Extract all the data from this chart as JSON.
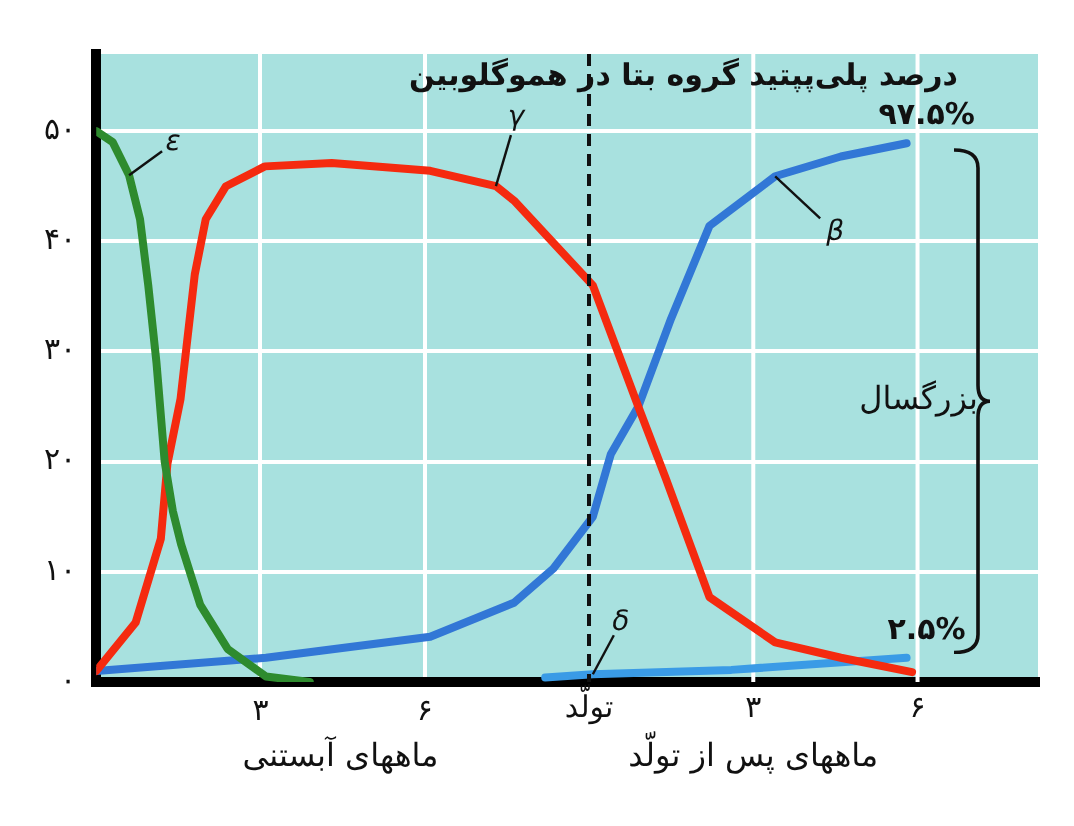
{
  "chart_data": {
    "type": "line",
    "title": "درصد پلی‌پپتید گروه بتا در هموگلوبین",
    "xlabel": "ماههای آبستنی",
    "xlim": [
      0,
      17.2
    ],
    "xticks": [
      {
        "value": 3,
        "label": "۳"
      },
      {
        "value": 6,
        "label": "۶"
      }
    ],
    "x2lim": [
      -9,
      8.2
    ],
    "x2ticks": [
      {
        "value": 0,
        "label": "تولّد"
      },
      {
        "value": 3,
        "label": "۳"
      },
      {
        "value": 6,
        "label": "۶"
      }
    ],
    "ylim": [
      0,
      57
    ],
    "yticks": [
      {
        "value": 0,
        "label": "۰"
      },
      {
        "value": 10,
        "label": "۱۰"
      },
      {
        "value": 20,
        "label": "۲۰"
      },
      {
        "value": 30,
        "label": "۳۰"
      },
      {
        "value": 40,
        "label": "۴۰"
      },
      {
        "value": 50,
        "label": "۵۰"
      }
    ],
    "grid": true,
    "legend": false,
    "marker": "none",
    "line_style": "solid",
    "series": [
      {
        "name": "ε",
        "color": "#2e8b2e",
        "x": [
          0,
          0.3,
          0.6,
          0.8,
          0.95,
          1.1,
          1.25,
          1.4,
          1.55,
          1.9,
          2.4,
          3.1,
          3.9
        ],
        "values": [
          50,
          49,
          46,
          42,
          36,
          29,
          20,
          15.5,
          12.5,
          7,
          3,
          0.5,
          0
        ]
      },
      {
        "name": "γ",
        "color": "#f52a0f",
        "x": [
          0,
          0.72,
          1.18,
          1.3,
          1.54,
          1.8,
          2.0,
          2.37,
          3.08,
          4.3,
          6.1,
          7.3,
          7.63,
          9.07,
          9.9,
          10.4,
          11.2,
          12.4,
          13.6,
          14.9
        ],
        "values": [
          1,
          5.4,
          13,
          19.8,
          25.7,
          37,
          42,
          45,
          46.8,
          47.1,
          46.4,
          45,
          43.7,
          36,
          25,
          18.5,
          7.7,
          3.6,
          2.2,
          0.9
        ]
      },
      {
        "name": "β",
        "color": "#3277d6",
        "x": [
          0,
          3.1,
          6.1,
          7.63,
          8.35,
          9.07,
          9.4,
          9.9,
          10.5,
          11.2,
          12.4,
          13.6,
          14.8
        ],
        "values": [
          1,
          2.2,
          4.1,
          7.2,
          10.3,
          15,
          20.7,
          25,
          33,
          41.4,
          45.9,
          47.7,
          48.9
        ]
      },
      {
        "name": "δ",
        "color": "#3a9be6",
        "x": [
          8.2,
          9.07,
          11.6,
          14.8
        ],
        "values": [
          0.4,
          0.7,
          1.1,
          2.2
        ]
      }
    ],
    "ref_lines": [
      {
        "axis": "x",
        "value": 9,
        "color": "#111111",
        "line_style": "dashed"
      }
    ],
    "annotations": [
      {
        "text": "۹۷.۵%",
        "x": 14.8,
        "y": 48.9
      },
      {
        "text": "۲.۵%",
        "x": 14.8,
        "y": 2.2
      },
      "بزرگسال",
      "ماههای پس از تولّد"
    ]
  }
}
